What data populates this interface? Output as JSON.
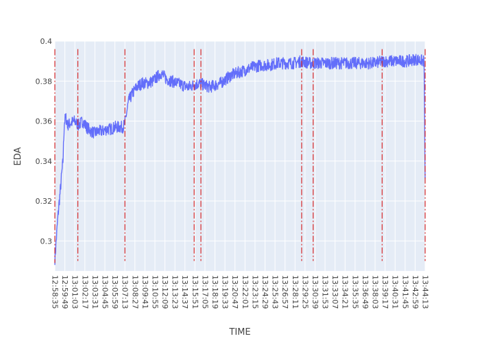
{
  "chart_data": {
    "type": "line",
    "title": "",
    "xlabel": "TIME",
    "ylabel": "EDA",
    "ylim": [
      0.285,
      0.4
    ],
    "yticks": [
      0.3,
      0.32,
      0.34,
      0.36,
      0.38,
      0.4
    ],
    "ytick_labels": [
      "0.3",
      "0.32",
      "0.34",
      "0.36",
      "0.38",
      "0.4"
    ],
    "xrange": [
      "12:58:35",
      "13:44:13"
    ],
    "xtick_labels": [
      "12:58:35",
      "12:59:49",
      "13:01:03",
      "13:02:17",
      "13:03:31",
      "13:04:45",
      "13:05:59",
      "13:07:13",
      "13:08:27",
      "13:09:41",
      "13:10:55",
      "13:12:09",
      "13:13:23",
      "13:14:37",
      "13:15:51",
      "13:17:05",
      "13:18:19",
      "13:19:33",
      "13:20:47",
      "13:22:01",
      "13:23:15",
      "13:24:29",
      "13:25:43",
      "13:26:57",
      "13:28:11",
      "13:29:25",
      "13:30:39",
      "13:31:53",
      "13:33:07",
      "13:34:21",
      "13:35:35",
      "13:36:49",
      "13:38:03",
      "13:39:17",
      "13:40:31",
      "13:41:45",
      "13:42:59",
      "13:44:13"
    ],
    "grid": true,
    "line_color": "#636efa",
    "marker_color": "#d62728",
    "series": [
      {
        "x": [
          "12:58:35",
          "12:58:45",
          "12:58:55",
          "12:59:05",
          "12:59:15",
          "12:59:25",
          "12:59:35",
          "12:59:45",
          "12:59:55",
          "13:00:10",
          "13:00:30",
          "13:01:00",
          "13:01:30",
          "13:02:00",
          "13:02:30",
          "13:03:00",
          "13:03:30",
          "13:04:00",
          "13:04:30",
          "13:05:00",
          "13:05:30",
          "13:06:00",
          "13:06:30",
          "13:07:00",
          "13:07:13",
          "13:07:40",
          "13:08:10",
          "13:08:40",
          "13:09:20",
          "13:10:00",
          "13:10:40",
          "13:11:10",
          "13:11:40",
          "13:12:20",
          "13:13:00",
          "13:13:40",
          "13:14:20",
          "13:15:00",
          "13:15:40",
          "13:16:20",
          "13:17:00",
          "13:17:40",
          "13:18:20",
          "13:19:00",
          "13:19:40",
          "13:20:20",
          "13:21:00",
          "13:21:40",
          "13:22:20",
          "13:23:00",
          "13:24:00",
          "13:25:00",
          "13:26:00",
          "13:27:00",
          "13:28:00",
          "13:29:00",
          "13:30:00",
          "13:31:00",
          "13:32:00",
          "13:33:00",
          "13:34:00",
          "13:35:00",
          "13:36:00",
          "13:37:00",
          "13:38:00",
          "13:39:00",
          "13:40:00",
          "13:41:00",
          "13:42:00",
          "13:43:00",
          "13:44:05",
          "13:44:13"
        ],
        "y": [
          0.291,
          0.3,
          0.31,
          0.318,
          0.325,
          0.333,
          0.34,
          0.359,
          0.362,
          0.358,
          0.359,
          0.36,
          0.358,
          0.36,
          0.357,
          0.355,
          0.354,
          0.355,
          0.355,
          0.356,
          0.356,
          0.357,
          0.357,
          0.357,
          0.359,
          0.37,
          0.374,
          0.377,
          0.379,
          0.379,
          0.38,
          0.382,
          0.384,
          0.381,
          0.38,
          0.379,
          0.378,
          0.377,
          0.378,
          0.379,
          0.378,
          0.377,
          0.378,
          0.379,
          0.381,
          0.383,
          0.384,
          0.385,
          0.386,
          0.387,
          0.388,
          0.388,
          0.389,
          0.389,
          0.389,
          0.39,
          0.389,
          0.389,
          0.389,
          0.389,
          0.389,
          0.389,
          0.389,
          0.389,
          0.389,
          0.39,
          0.39,
          0.39,
          0.39,
          0.391,
          0.39,
          0.33
        ],
        "noise": 0.003
      }
    ],
    "markers": [
      {
        "x": "12:58:35",
        "y_range": [
          0.289,
          0.396
        ]
      },
      {
        "x": "13:01:25",
        "y_range": [
          0.29,
          0.396
        ]
      },
      {
        "x": "13:07:13",
        "y_range": [
          0.29,
          0.396
        ]
      },
      {
        "x": "13:15:45",
        "y_range": [
          0.29,
          0.396
        ]
      },
      {
        "x": "13:16:35",
        "y_range": [
          0.29,
          0.396
        ]
      },
      {
        "x": "13:29:00",
        "y_range": [
          0.29,
          0.396
        ]
      },
      {
        "x": "13:30:25",
        "y_range": [
          0.29,
          0.396
        ]
      },
      {
        "x": "13:38:55",
        "y_range": [
          0.29,
          0.396
        ]
      },
      {
        "x": "13:44:13",
        "y_range": [
          0.29,
          0.396
        ]
      }
    ]
  }
}
